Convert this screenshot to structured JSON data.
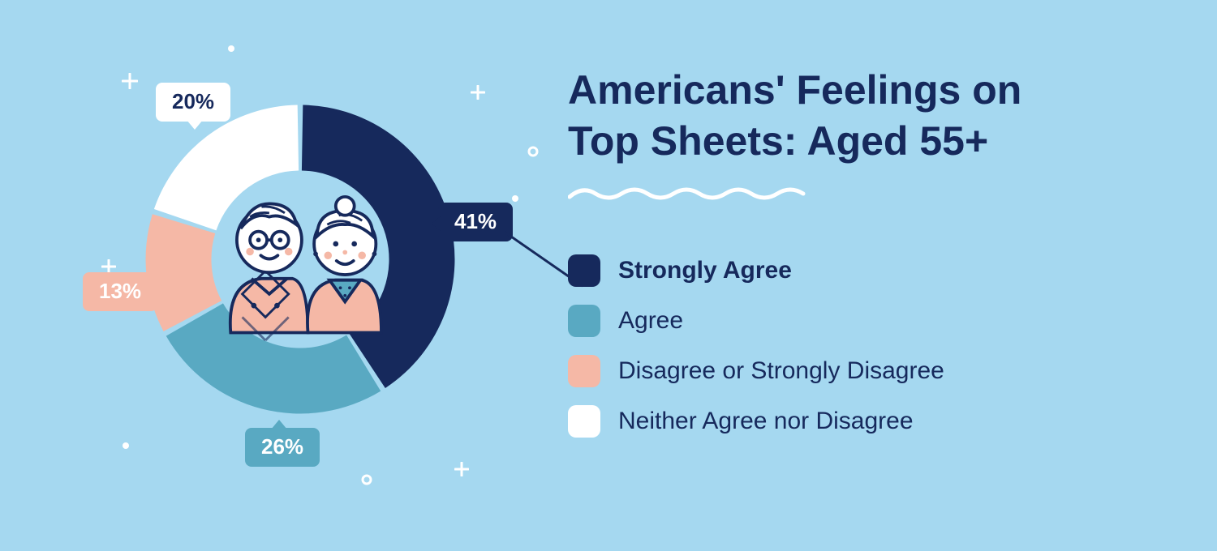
{
  "background_color": "#a5d8f0",
  "title_line1": "Americans' Feelings on",
  "title_line2": "Top Sheets: Aged 55+",
  "title_color": "#16295c",
  "title_fontsize": 50,
  "wave_color": "#ffffff",
  "chart": {
    "type": "donut",
    "outer_radius": 200,
    "inner_radius": 115,
    "gap_degrees": 2,
    "start_angle_deg": -90,
    "segments": [
      {
        "key": "strongly_agree",
        "label": "Strongly Agree",
        "value": 41,
        "display": "41%",
        "color": "#16295c",
        "label_bg": "#16295c",
        "label_text_color": "#ffffff",
        "bold": true
      },
      {
        "key": "agree",
        "label": "Agree",
        "value": 26,
        "display": "26%",
        "color": "#59a9c2",
        "label_bg": "#59a9c2",
        "label_text_color": "#ffffff",
        "bold": false
      },
      {
        "key": "disagree",
        "label": "Disagree or Strongly Disagree",
        "value": 13,
        "display": "13%",
        "color": "#f5b8a6",
        "label_bg": "#f5b8a6",
        "label_text_color": "#ffffff",
        "bold": false
      },
      {
        "key": "neither",
        "label": "Neither Agree nor Disagree",
        "value": 20,
        "display": "20%",
        "color": "#ffffff",
        "label_bg": "#ffffff",
        "label_text_color": "#16295c",
        "bold": false
      }
    ]
  },
  "legend_fontsize": 30,
  "legend_text_color": "#16295c",
  "swatch_radius": 10,
  "decor": {
    "sparkle_color": "#ffffff",
    "connector_color": "#16295c"
  },
  "center_illustration": {
    "skin": "#ffffff",
    "outline": "#16295c",
    "accent_pink": "#f5b8a6",
    "accent_teal": "#59a9c2",
    "hair": "#ffffff"
  }
}
